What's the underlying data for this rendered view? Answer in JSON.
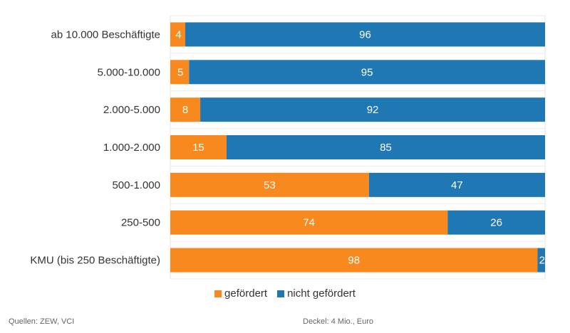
{
  "chart_data": {
    "type": "bar",
    "orientation": "horizontal",
    "stacked": true,
    "categories": [
      "ab 10.000 Beschäftigte",
      "5.000-10.000",
      "2.000-5.000",
      "1.000-2.000",
      "500-1.000",
      "250-500",
      "KMU (bis 250 Beschäftigte)"
    ],
    "series": [
      {
        "name": "gefördert",
        "color": "#f7891f",
        "values": [
          4,
          5,
          8,
          15,
          53,
          74,
          98
        ]
      },
      {
        "name": "nicht gefördert",
        "color": "#1f77b4",
        "values": [
          96,
          95,
          92,
          85,
          47,
          26,
          2
        ]
      }
    ],
    "xlim": [
      0,
      100
    ],
    "unit": "percent",
    "grid": true,
    "legend_position": "bottom-center"
  },
  "footer": {
    "source": "Quellen: ZEW, VCI",
    "note": "Deckel: 4 Mio., Euro"
  }
}
